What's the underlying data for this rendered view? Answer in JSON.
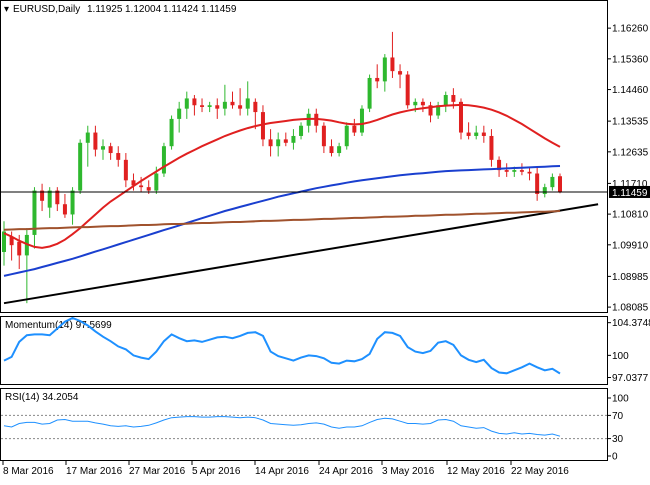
{
  "header": {
    "symbol": "EURUSD,Daily",
    "open": "1.11925",
    "high": "1.12004",
    "low": "1.11424",
    "close": "1.11459"
  },
  "current_price_label": "1.11459",
  "colors": {
    "bull": "#2eb82e",
    "bear": "#e02020",
    "sma20": "#e02020",
    "sma50": "#1a3fcf",
    "sma200": "#a0522d",
    "trendline": "#000000",
    "indicator": "#1e90ff"
  },
  "chart_data": [
    {
      "type": "candlestick",
      "title": "EURUSD,Daily",
      "y_ticks": [
        "1.16260",
        "1.15360",
        "1.14460",
        "1.13535",
        "1.12635",
        "1.11710",
        "1.10810",
        "1.09910",
        "1.08985",
        "1.08085"
      ],
      "ylim": [
        1.08,
        1.1685
      ],
      "x_tick_labels": [
        "8 Mar 2016",
        "17 Mar 2016",
        "27 Mar 2016",
        "5 Apr 2016",
        "14 Apr 2016",
        "24 Apr 2016",
        "3 May 2016",
        "12 May 2016",
        "22 May 2016"
      ],
      "candles": [
        {
          "o": 1.097,
          "h": 1.106,
          "l": 1.093,
          "c": 1.103
        },
        {
          "o": 1.1015,
          "h": 1.103,
          "l": 1.0945,
          "c": 1.099
        },
        {
          "o": 1.1,
          "h": 1.102,
          "l": 1.092,
          "c": 1.096
        },
        {
          "o": 1.096,
          "h": 1.104,
          "l": 1.082,
          "c": 1.102
        },
        {
          "o": 1.102,
          "h": 1.116,
          "l": 1.098,
          "c": 1.115
        },
        {
          "o": 1.115,
          "h": 1.117,
          "l": 1.109,
          "c": 1.112
        },
        {
          "o": 1.11,
          "h": 1.116,
          "l": 1.107,
          "c": 1.115
        },
        {
          "o": 1.115,
          "h": 1.116,
          "l": 1.109,
          "c": 1.111
        },
        {
          "o": 1.111,
          "h": 1.114,
          "l": 1.107,
          "c": 1.108
        },
        {
          "o": 1.108,
          "h": 1.116,
          "l": 1.105,
          "c": 1.115
        },
        {
          "o": 1.115,
          "h": 1.13,
          "l": 1.114,
          "c": 1.129
        },
        {
          "o": 1.129,
          "h": 1.134,
          "l": 1.122,
          "c": 1.132
        },
        {
          "o": 1.132,
          "h": 1.134,
          "l": 1.125,
          "c": 1.127
        },
        {
          "o": 1.127,
          "h": 1.13,
          "l": 1.124,
          "c": 1.128
        },
        {
          "o": 1.128,
          "h": 1.129,
          "l": 1.124,
          "c": 1.126
        },
        {
          "o": 1.126,
          "h": 1.128,
          "l": 1.122,
          "c": 1.124
        },
        {
          "o": 1.124,
          "h": 1.126,
          "l": 1.116,
          "c": 1.118
        },
        {
          "o": 1.118,
          "h": 1.12,
          "l": 1.115,
          "c": 1.1165
        },
        {
          "o": 1.1165,
          "h": 1.119,
          "l": 1.1145,
          "c": 1.116
        },
        {
          "o": 1.116,
          "h": 1.118,
          "l": 1.114,
          "c": 1.115
        },
        {
          "o": 1.115,
          "h": 1.122,
          "l": 1.114,
          "c": 1.12
        },
        {
          "o": 1.12,
          "h": 1.129,
          "l": 1.119,
          "c": 1.128
        },
        {
          "o": 1.128,
          "h": 1.137,
          "l": 1.127,
          "c": 1.136
        },
        {
          "o": 1.136,
          "h": 1.141,
          "l": 1.132,
          "c": 1.139
        },
        {
          "o": 1.139,
          "h": 1.144,
          "l": 1.136,
          "c": 1.142
        },
        {
          "o": 1.142,
          "h": 1.143,
          "l": 1.137,
          "c": 1.14
        },
        {
          "o": 1.14,
          "h": 1.142,
          "l": 1.138,
          "c": 1.1395
        },
        {
          "o": 1.1395,
          "h": 1.141,
          "l": 1.138,
          "c": 1.14
        },
        {
          "o": 1.14,
          "h": 1.142,
          "l": 1.136,
          "c": 1.139
        },
        {
          "o": 1.139,
          "h": 1.146,
          "l": 1.137,
          "c": 1.141
        },
        {
          "o": 1.141,
          "h": 1.144,
          "l": 1.139,
          "c": 1.14
        },
        {
          "o": 1.14,
          "h": 1.145,
          "l": 1.137,
          "c": 1.139
        },
        {
          "o": 1.139,
          "h": 1.147,
          "l": 1.137,
          "c": 1.142
        },
        {
          "o": 1.141,
          "h": 1.142,
          "l": 1.133,
          "c": 1.138
        },
        {
          "o": 1.138,
          "h": 1.14,
          "l": 1.128,
          "c": 1.13
        },
        {
          "o": 1.13,
          "h": 1.133,
          "l": 1.125,
          "c": 1.128
        },
        {
          "o": 1.128,
          "h": 1.132,
          "l": 1.125,
          "c": 1.13
        },
        {
          "o": 1.13,
          "h": 1.132,
          "l": 1.128,
          "c": 1.129
        },
        {
          "o": 1.129,
          "h": 1.133,
          "l": 1.127,
          "c": 1.131
        },
        {
          "o": 1.131,
          "h": 1.135,
          "l": 1.13,
          "c": 1.134
        },
        {
          "o": 1.134,
          "h": 1.139,
          "l": 1.132,
          "c": 1.1375
        },
        {
          "o": 1.1375,
          "h": 1.139,
          "l": 1.132,
          "c": 1.134
        },
        {
          "o": 1.134,
          "h": 1.135,
          "l": 1.126,
          "c": 1.128
        },
        {
          "o": 1.128,
          "h": 1.13,
          "l": 1.125,
          "c": 1.126
        },
        {
          "o": 1.126,
          "h": 1.129,
          "l": 1.125,
          "c": 1.128
        },
        {
          "o": 1.128,
          "h": 1.135,
          "l": 1.127,
          "c": 1.134
        },
        {
          "o": 1.134,
          "h": 1.136,
          "l": 1.131,
          "c": 1.132
        },
        {
          "o": 1.132,
          "h": 1.14,
          "l": 1.131,
          "c": 1.139
        },
        {
          "o": 1.139,
          "h": 1.149,
          "l": 1.138,
          "c": 1.148
        },
        {
          "o": 1.148,
          "h": 1.152,
          "l": 1.145,
          "c": 1.147
        },
        {
          "o": 1.147,
          "h": 1.155,
          "l": 1.144,
          "c": 1.154
        },
        {
          "o": 1.154,
          "h": 1.1615,
          "l": 1.148,
          "c": 1.15
        },
        {
          "o": 1.15,
          "h": 1.152,
          "l": 1.145,
          "c": 1.149
        },
        {
          "o": 1.149,
          "h": 1.15,
          "l": 1.139,
          "c": 1.14
        },
        {
          "o": 1.14,
          "h": 1.142,
          "l": 1.138,
          "c": 1.141
        },
        {
          "o": 1.141,
          "h": 1.142,
          "l": 1.138,
          "c": 1.14
        },
        {
          "o": 1.14,
          "h": 1.141,
          "l": 1.135,
          "c": 1.137
        },
        {
          "o": 1.137,
          "h": 1.141,
          "l": 1.136,
          "c": 1.14
        },
        {
          "o": 1.14,
          "h": 1.144,
          "l": 1.138,
          "c": 1.143
        },
        {
          "o": 1.143,
          "h": 1.145,
          "l": 1.139,
          "c": 1.141
        },
        {
          "o": 1.141,
          "h": 1.142,
          "l": 1.13,
          "c": 1.132
        },
        {
          "o": 1.132,
          "h": 1.135,
          "l": 1.13,
          "c": 1.131
        },
        {
          "o": 1.131,
          "h": 1.134,
          "l": 1.13,
          "c": 1.132
        },
        {
          "o": 1.132,
          "h": 1.134,
          "l": 1.129,
          "c": 1.131
        },
        {
          "o": 1.131,
          "h": 1.133,
          "l": 1.122,
          "c": 1.124
        },
        {
          "o": 1.124,
          "h": 1.125,
          "l": 1.119,
          "c": 1.121
        },
        {
          "o": 1.121,
          "h": 1.123,
          "l": 1.119,
          "c": 1.1205
        },
        {
          "o": 1.1205,
          "h": 1.122,
          "l": 1.119,
          "c": 1.121
        },
        {
          "o": 1.121,
          "h": 1.123,
          "l": 1.1195,
          "c": 1.1205
        },
        {
          "o": 1.1205,
          "h": 1.122,
          "l": 1.118,
          "c": 1.12
        },
        {
          "o": 1.12,
          "h": 1.122,
          "l": 1.112,
          "c": 1.114
        },
        {
          "o": 1.114,
          "h": 1.117,
          "l": 1.113,
          "c": 1.116
        },
        {
          "o": 1.116,
          "h": 1.12,
          "l": 1.115,
          "c": 1.119
        },
        {
          "o": 1.1192,
          "h": 1.12,
          "l": 1.1142,
          "c": 1.1146
        }
      ],
      "series": [
        {
          "name": "",
          "color_key": "sma20",
          "values": [
            1.1025,
            1.1015,
            1.1003,
            1.0993,
            1.0985,
            1.0982,
            1.0986,
            1.0994,
            1.1006,
            1.1022,
            1.104,
            1.106,
            1.108,
            1.11,
            1.1118,
            1.1133,
            1.1148,
            1.1163,
            1.1178,
            1.1192,
            1.1206,
            1.122,
            1.1233,
            1.1246,
            1.1258,
            1.1269,
            1.128,
            1.129,
            1.13,
            1.131,
            1.1318,
            1.1326,
            1.1333,
            1.1339,
            1.1344,
            1.1348,
            1.1351,
            1.1354,
            1.1357,
            1.1359,
            1.136,
            1.136,
            1.1358,
            1.1355,
            1.135,
            1.1346,
            1.1344,
            1.1345,
            1.135,
            1.1357,
            1.1365,
            1.1373,
            1.1379,
            1.1384,
            1.1388,
            1.1391,
            1.1394,
            1.1397,
            1.1399,
            1.14,
            1.1401,
            1.14,
            1.1397,
            1.1393,
            1.1387,
            1.1379,
            1.1369,
            1.1357,
            1.1345,
            1.1331,
            1.1317,
            1.1303,
            1.129,
            1.1278
          ]
        },
        {
          "name": "",
          "color_key": "sma50",
          "values": [
            1.09,
            1.0905,
            1.091,
            1.0915,
            1.092,
            1.0926,
            1.0932,
            1.0938,
            1.0944,
            1.095,
            1.0957,
            1.0964,
            1.0971,
            1.0978,
            1.0985,
            1.0992,
            1.0999,
            1.1006,
            1.1013,
            1.102,
            1.1027,
            1.1034,
            1.1041,
            1.1048,
            1.1055,
            1.1062,
            1.1069,
            1.1076,
            1.1083,
            1.109,
            1.1096,
            1.1102,
            1.1108,
            1.1114,
            1.112,
            1.1126,
            1.1132,
            1.1137,
            1.1142,
            1.1147,
            1.1152,
            1.1157,
            1.1161,
            1.1165,
            1.1169,
            1.1173,
            1.1177,
            1.118,
            1.1183,
            1.1186,
            1.1189,
            1.1192,
            1.1195,
            1.1197,
            1.1199,
            1.1201,
            1.1203,
            1.1205,
            1.1207,
            1.1208,
            1.1209,
            1.121,
            1.1211,
            1.1212,
            1.1213,
            1.1214,
            1.1215,
            1.1216,
            1.1217,
            1.1218,
            1.1219,
            1.122,
            1.1221,
            1.1222
          ]
        },
        {
          "name": "",
          "color_key": "sma200",
          "values": [
            1.1035,
            1.1036,
            1.1037,
            1.1037,
            1.1038,
            1.1039,
            1.104,
            1.104,
            1.1041,
            1.1042,
            1.1043,
            1.1043,
            1.1044,
            1.1045,
            1.1046,
            1.1046,
            1.1047,
            1.1048,
            1.1049,
            1.1049,
            1.105,
            1.1051,
            1.1052,
            1.1052,
            1.1053,
            1.1054,
            1.1055,
            1.1055,
            1.1056,
            1.1057,
            1.1058,
            1.1058,
            1.1059,
            1.106,
            1.1061,
            1.1061,
            1.1062,
            1.1063,
            1.1064,
            1.1064,
            1.1065,
            1.1066,
            1.1067,
            1.1067,
            1.1068,
            1.1069,
            1.107,
            1.107,
            1.1071,
            1.1072,
            1.1073,
            1.1073,
            1.1074,
            1.1075,
            1.1076,
            1.1076,
            1.1077,
            1.1078,
            1.1079,
            1.1079,
            1.108,
            1.1081,
            1.1082,
            1.1082,
            1.1083,
            1.1084,
            1.1085,
            1.1085,
            1.1086,
            1.1087,
            1.1088,
            1.1088,
            1.1089,
            1.109
          ]
        }
      ],
      "trendline": {
        "from": [
          0,
          1.082
        ],
        "to": [
          78,
          1.111
        ]
      }
    },
    {
      "type": "line",
      "title": "Momentum(14) 97.5699",
      "y_ticks": [
        "104.3748",
        "100",
        "97.0377"
      ],
      "ylim": [
        96.3,
        105.0
      ],
      "values": [
        99.3,
        99.8,
        101.8,
        102.7,
        102.8,
        102.8,
        102.7,
        103.6,
        104.5,
        105.0,
        104.6,
        104.0,
        103.2,
        102.5,
        101.9,
        101.2,
        100.8,
        100.0,
        99.7,
        99.5,
        100.5,
        101.9,
        102.8,
        102.3,
        101.9,
        102.0,
        101.8,
        102.1,
        102.4,
        102.5,
        102.3,
        102.6,
        103.0,
        103.1,
        102.6,
        100.5,
        99.9,
        99.6,
        99.3,
        99.7,
        100.0,
        99.9,
        99.6,
        99.0,
        98.9,
        99.3,
        99.2,
        99.5,
        100.2,
        102.2,
        103.1,
        103.0,
        102.6,
        101.1,
        100.5,
        100.3,
        100.6,
        101.7,
        101.9,
        101.4,
        100.0,
        99.4,
        99.1,
        99.4,
        98.3,
        97.7,
        97.6,
        98.0,
        98.4,
        98.9,
        98.4,
        98.0,
        98.2,
        97.57
      ]
    },
    {
      "type": "line",
      "title": "RSI(14) 34.2054",
      "y_ticks": [
        "100",
        "70",
        "30",
        "0"
      ],
      "ylim": [
        0,
        100
      ],
      "values": [
        52,
        50,
        56,
        58,
        58,
        55,
        56,
        62,
        63,
        60,
        60,
        60,
        57,
        55,
        52,
        51,
        52,
        50,
        51,
        53,
        57,
        62,
        66,
        67,
        68,
        68,
        67,
        67,
        68,
        68,
        67,
        66,
        67,
        66,
        62,
        56,
        55,
        54,
        53,
        54,
        56,
        57,
        55,
        50,
        48,
        50,
        50,
        52,
        58,
        63,
        65,
        64,
        60,
        56,
        56,
        55,
        56,
        62,
        63,
        60,
        52,
        50,
        48,
        49,
        43,
        39,
        38,
        40,
        38,
        39,
        37,
        36,
        38,
        34.2
      ]
    }
  ]
}
